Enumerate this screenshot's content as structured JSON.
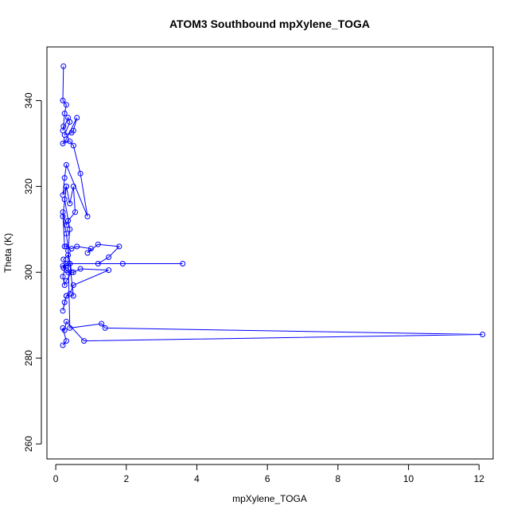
{
  "chart_data": {
    "type": "line",
    "title": "ATOM3 Southbound mpXylene_TOGA",
    "xlabel": "mpXylene_TOGA",
    "ylabel": "Theta (K)",
    "xlim": [
      -0.25,
      12.4
    ],
    "ylim": [
      256.5,
      352.5
    ],
    "xticks": [
      0,
      2,
      4,
      6,
      8,
      10,
      12
    ],
    "yticks": [
      260,
      280,
      300,
      320,
      340
    ],
    "grid": false,
    "legend": "none",
    "color": "#0000ff",
    "series": [
      {
        "x": [
          0.22,
          0.2,
          0.3,
          0.25,
          0.22,
          0.2,
          0.35,
          0.4,
          0.25,
          0.45,
          0.5,
          0.6,
          0.3,
          0.2,
          0.4,
          0.5,
          0.7,
          0.9,
          0.3,
          0.25,
          0.2,
          0.3,
          0.4,
          0.5,
          0.55,
          0.35,
          0.3,
          0.2,
          0.25,
          0.3,
          0.45,
          0.6,
          1.0,
          0.9,
          1.2,
          1.8,
          1.5,
          1.2,
          1.9,
          3.6,
          0.4,
          0.3,
          0.22,
          0.2,
          0.3,
          0.35,
          0.5,
          0.7,
          1.5,
          0.5,
          0.4,
          0.3,
          0.25,
          0.2,
          0.3,
          0.5,
          0.4,
          0.3,
          0.2,
          0.3,
          0.25,
          0.4,
          0.35,
          0.45,
          0.3,
          0.25,
          0.2,
          0.3,
          0.22,
          0.35,
          0.4,
          1.3,
          1.4,
          12.1,
          0.8,
          0.3,
          0.25,
          0.2,
          0.3,
          0.2
        ],
        "y": [
          348,
          340,
          339,
          337,
          334,
          333,
          336,
          335,
          332,
          332.5,
          333,
          336,
          331,
          330,
          330.5,
          329.5,
          323,
          313,
          325,
          322,
          318,
          320,
          316,
          320,
          314,
          312,
          311,
          314,
          306,
          306,
          305.5,
          306,
          305.5,
          304.5,
          306.5,
          306,
          303.5,
          302,
          302,
          302,
          302,
          301.5,
          301,
          301.5,
          300.5,
          300,
          300,
          300.8,
          300.5,
          297,
          295,
          294.5,
          293,
          291,
          294.5,
          294.5,
          302,
          309,
          313,
          320,
          317,
          310,
          305,
          300,
          298,
          297,
          299,
          302,
          303,
          304,
          287,
          288,
          287,
          285.5,
          284,
          288.5,
          286.5,
          287,
          284,
          283
        ]
      }
    ]
  }
}
